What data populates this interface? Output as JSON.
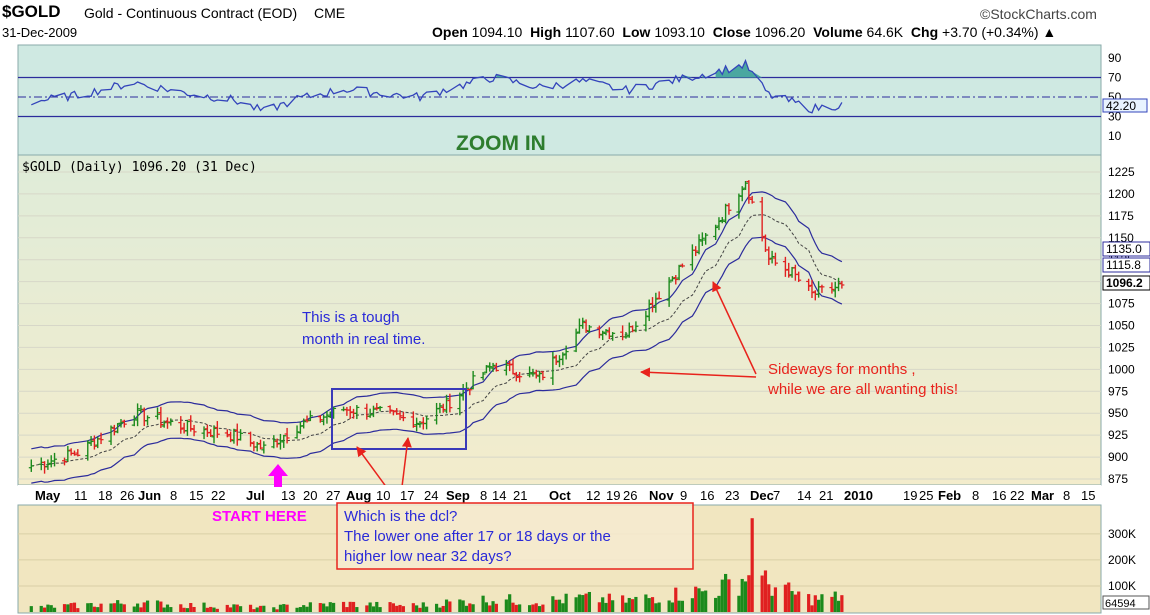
{
  "header": {
    "symbol": "$GOLD",
    "name": "Gold - Continuous Contract (EOD)",
    "exchange": "CME",
    "date": "31-Dec-2009",
    "brand": "©StockCharts.com",
    "open_label": "Open",
    "open_value": "1094.10",
    "high_label": "High",
    "high_value": "1107.60",
    "low_label": "Low",
    "low_value": "1093.10",
    "close_label": "Close",
    "close_value": "1096.20",
    "volume_label": "Volume",
    "volume_value": "64.6K",
    "chg_label": "Chg",
    "chg_value": "+3.70 (+0.34%)"
  },
  "rsi_panel": {
    "title": "ZOOM IN",
    "ticks": [
      "90",
      "70",
      "50",
      "30",
      "10"
    ],
    "last_value_label": "42.20",
    "overbought": 70,
    "oversold": 30,
    "midline": 50
  },
  "price_panel": {
    "legend": "$GOLD (Daily) 1096.20 (31 Dec)",
    "ticks": [
      "1225",
      "1200",
      "1175",
      "1150",
      "1125",
      "1100",
      "1075",
      "1050",
      "1025",
      "1000",
      "975",
      "950",
      "925",
      "900",
      "875"
    ],
    "envelope_labels": [
      "1135.0",
      "1115.8",
      "1096.2"
    ],
    "x_labels": [
      "May",
      "11",
      "18",
      "26",
      "Jun",
      "8",
      "15",
      "22",
      "Jul",
      "13",
      "20",
      "27",
      "Aug",
      "10",
      "17",
      "24",
      "Sep",
      "8",
      "14",
      "21",
      "Oct",
      "12",
      "19",
      "26",
      "Nov",
      "9",
      "16",
      "23",
      "Dec",
      "7",
      "14",
      "21",
      "2010",
      "19",
      "25",
      "Feb",
      "8",
      "16",
      "22",
      "Mar",
      "8",
      "15"
    ]
  },
  "volume_panel": {
    "ticks": [
      "300K",
      "200K",
      "100K"
    ],
    "last_value_label": "64594"
  },
  "annotations": {
    "tough_month": [
      "This is a tough",
      "month in real time."
    ],
    "sideways": [
      "Sideways for months ,",
      "while we are all wanting this!"
    ],
    "start_here": "START HERE",
    "dcl_question": [
      "Which is the dcl?",
      "The lower one after 17 or 18 days or the",
      "higher low near 32 days?"
    ]
  },
  "colors": {
    "rsi_bg": "#cfe9e2",
    "price_bg_top": "#dfecd9",
    "price_bg_bottom": "#f3eccc",
    "volume_bg": "#f1e6c0",
    "up_bar": "#1c8a1c",
    "down_bar": "#e02020",
    "envelope": "#2c2c9c",
    "rsi_line": "#3344bb",
    "annotation_blue": "#2a2ad8",
    "annotation_red": "#e8231c",
    "start_here": "#ff00ff",
    "zoom_title": "#2e7d2e"
  },
  "chart_data": {
    "type": "line",
    "title": "$GOLD (Daily) 1096.20 (31 Dec)",
    "ylim": [
      875,
      1225
    ],
    "x": [
      "2009-05-01",
      "2009-05-15",
      "2009-06-01",
      "2009-06-15",
      "2009-07-01",
      "2009-07-10",
      "2009-07-20",
      "2009-08-03",
      "2009-08-14",
      "2009-08-26",
      "2009-09-03",
      "2009-09-17",
      "2009-10-01",
      "2009-10-14",
      "2009-10-27",
      "2009-11-09",
      "2009-11-23",
      "2009-12-02",
      "2009-12-09",
      "2009-12-16",
      "2009-12-22",
      "2009-12-31"
    ],
    "series": [
      {
        "values": [
          890,
          905,
          950,
          935,
          925,
          910,
          935,
          955,
          950,
          940,
          960,
          1005,
          990,
          1050,
          1040,
          1100,
          1165,
          1215,
          1125,
          1110,
          1085,
          1096
        ]
      }
    ],
    "rsi_values": [
      45,
      52,
      65,
      55,
      47,
      35,
      48,
      58,
      54,
      50,
      58,
      70,
      60,
      66,
      57,
      66,
      76,
      83,
      52,
      45,
      38,
      42
    ],
    "volume_k": [
      20,
      28,
      40,
      30,
      25,
      18,
      28,
      35,
      30,
      28,
      40,
      55,
      45,
      60,
      48,
      72,
      95,
      150,
      120,
      80,
      55,
      65
    ]
  }
}
